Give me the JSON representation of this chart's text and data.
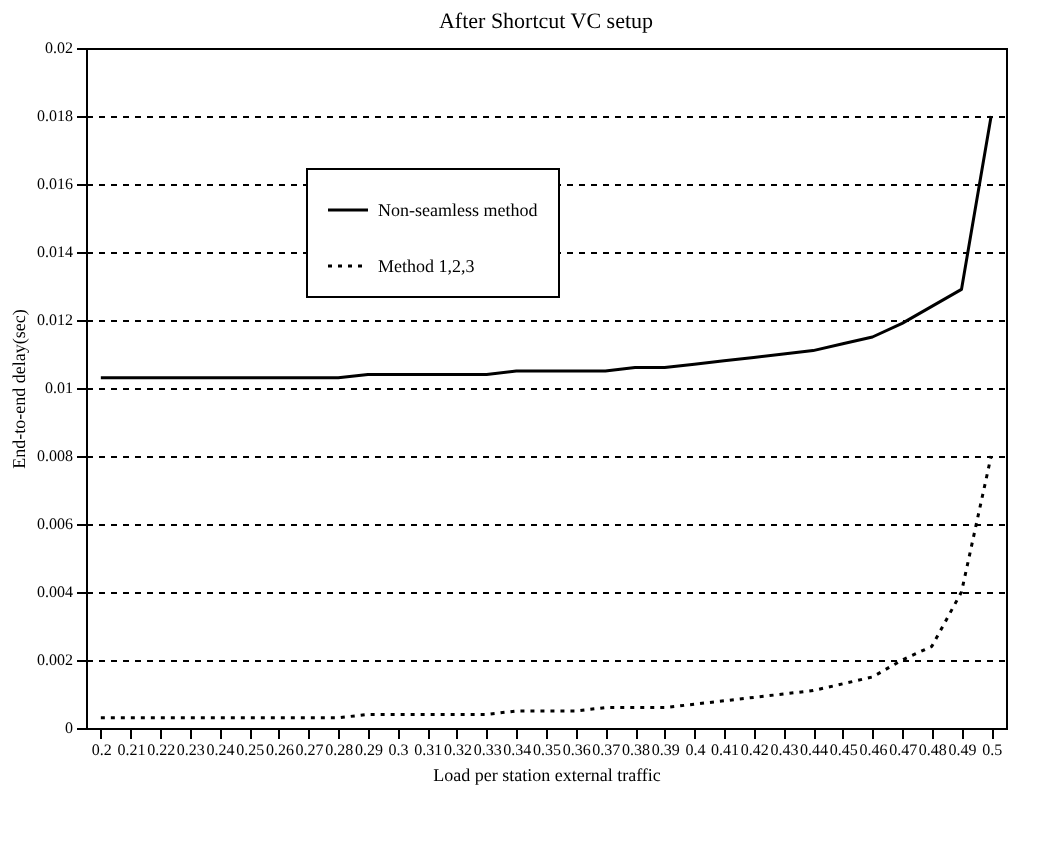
{
  "chart_data": {
    "type": "line",
    "title": "After Shortcut VC setup",
    "xlabel": "Load per station external traffic",
    "ylabel": "End-to-end delay(sec)",
    "categories": [
      "0.2",
      "0.21",
      "0.22",
      "0.23",
      "0.24",
      "0.25",
      "0.26",
      "0.27",
      "0.28",
      "0.29",
      "0.3",
      "0.31",
      "0.32",
      "0.33",
      "0.34",
      "0.35",
      "0.36",
      "0.37",
      "0.38",
      "0.39",
      "0.4",
      "0.41",
      "0.42",
      "0.43",
      "0.44",
      "0.45",
      "0.46",
      "0.47",
      "0.48",
      "0.49",
      "0.5"
    ],
    "series": [
      {
        "name": "Non-seamless method",
        "color": "#000000",
        "line_style": "solid",
        "values": [
          0.0103,
          0.0103,
          0.0103,
          0.0103,
          0.0103,
          0.0103,
          0.0103,
          0.0103,
          0.0103,
          0.0104,
          0.0104,
          0.0104,
          0.0104,
          0.0104,
          0.0105,
          0.0105,
          0.0105,
          0.0105,
          0.0106,
          0.0106,
          0.0107,
          0.0108,
          0.0109,
          0.011,
          0.0111,
          0.0113,
          0.0115,
          0.0119,
          0.0124,
          0.0129,
          0.018
        ]
      },
      {
        "name": "Method 1,2,3",
        "color": "#000000",
        "line_style": "dotted",
        "values": [
          0.0003,
          0.0003,
          0.0003,
          0.0003,
          0.0003,
          0.0003,
          0.0003,
          0.0003,
          0.0003,
          0.0004,
          0.0004,
          0.0004,
          0.0004,
          0.0004,
          0.0005,
          0.0005,
          0.0005,
          0.0006,
          0.0006,
          0.0006,
          0.0007,
          0.0008,
          0.0009,
          0.001,
          0.0011,
          0.0013,
          0.0015,
          0.002,
          0.0024,
          0.004,
          0.008
        ]
      }
    ],
    "ylim": [
      0,
      0.02
    ],
    "yticks": [
      0,
      0.002,
      0.004,
      0.006,
      0.008,
      0.01,
      0.012,
      0.014,
      0.016,
      0.018,
      0.02
    ],
    "grid": "y",
    "legend": "top left"
  }
}
